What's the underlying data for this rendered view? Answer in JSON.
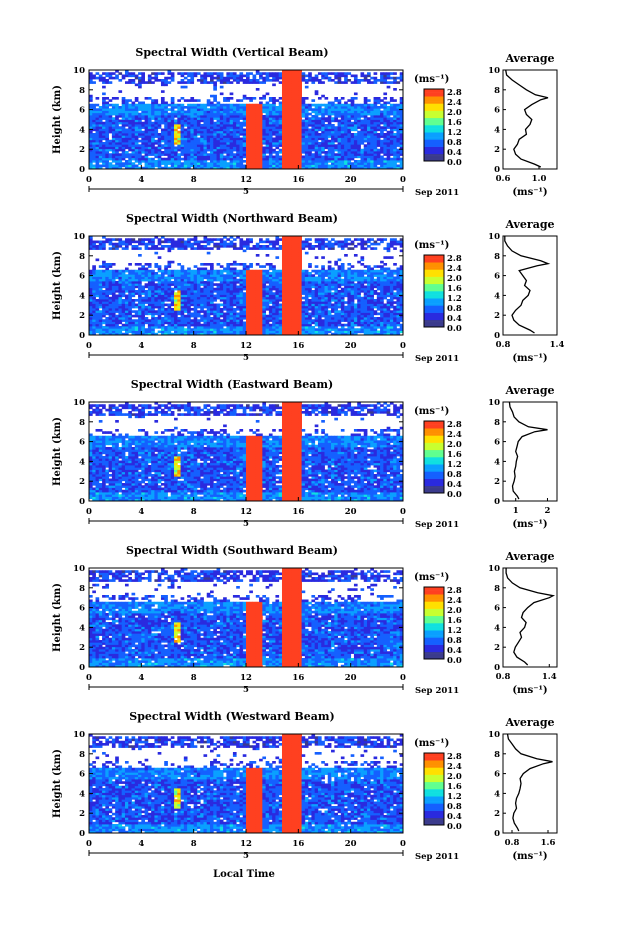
{
  "colorbar": {
    "unit": "(ms⁻¹)",
    "tick_labels": [
      "2.8",
      "2.4",
      "2.0",
      "1.6",
      "1.2",
      "0.8",
      "0.4",
      "0.0"
    ],
    "range": [
      0.0,
      2.8
    ],
    "colors": [
      "#3b3b8c",
      "#2a2adf",
      "#1560ff",
      "#0aa0ff",
      "#10e0e0",
      "#60ff90",
      "#c8ff30",
      "#ffe000",
      "#ff9000",
      "#ff4020",
      "#e01010"
    ]
  },
  "x_axis": {
    "label": "Local Time",
    "tick_labels": [
      "0",
      "4",
      "8",
      "12",
      "16",
      "20",
      "0"
    ],
    "day_label": "5",
    "date_label": "Sep 2011"
  },
  "y_axis": {
    "label": "Height (km)",
    "tick_labels": [
      "0",
      "2",
      "4",
      "6",
      "8",
      "10"
    ]
  },
  "profile_panel": {
    "title": "Average",
    "xlabel": "(ms⁻¹)"
  },
  "chart_data": [
    {
      "type": "heatmap",
      "title": "Spectral Width (Vertical Beam)",
      "xlabel": "",
      "ylabel": "Height (km)",
      "xlim": [
        0,
        24
      ],
      "ylim": [
        0,
        10
      ],
      "profile": {
        "x_ticks": [
          "0.6",
          "1.0"
        ],
        "xlim": [
          0.6,
          1.2
        ],
        "heights": [
          0.2,
          0.5,
          1.0,
          1.5,
          2.0,
          2.5,
          3.0,
          3.5,
          4.0,
          4.5,
          5.0,
          5.5,
          6.0,
          6.5,
          7.0,
          7.2,
          7.5,
          8.0,
          8.5,
          9.0,
          9.5,
          10.0
        ],
        "values": [
          1.02,
          0.95,
          0.8,
          0.74,
          0.72,
          0.76,
          0.78,
          0.86,
          0.85,
          0.9,
          0.92,
          0.86,
          0.84,
          0.92,
          1.02,
          1.1,
          0.96,
          0.86,
          0.78,
          0.7,
          0.64,
          0.63
        ]
      }
    },
    {
      "type": "heatmap",
      "title": "Spectral Width (Northward Beam)",
      "xlabel": "",
      "ylabel": "Height (km)",
      "xlim": [
        0,
        24
      ],
      "ylim": [
        0,
        10
      ],
      "profile": {
        "x_ticks": [
          "0.8",
          "1.4"
        ],
        "xlim": [
          0.8,
          1.4
        ],
        "heights": [
          0.2,
          0.5,
          1.0,
          1.5,
          2.0,
          2.5,
          3.0,
          3.5,
          4.0,
          4.5,
          5.0,
          5.5,
          6.0,
          6.5,
          7.0,
          7.2,
          7.5,
          8.0,
          8.5,
          9.0,
          9.5,
          10.0
        ],
        "values": [
          1.15,
          1.1,
          0.98,
          0.92,
          0.9,
          0.94,
          1.0,
          1.02,
          1.08,
          1.1,
          1.04,
          1.06,
          1.02,
          0.98,
          1.18,
          1.3,
          1.22,
          1.0,
          0.9,
          0.85,
          0.82,
          0.82
        ]
      }
    },
    {
      "type": "heatmap",
      "title": "Spectral Width (Eastward Beam)",
      "xlabel": "",
      "ylabel": "Height (km)",
      "xlim": [
        0,
        24
      ],
      "ylim": [
        0,
        10
      ],
      "profile": {
        "x_ticks": [
          "1",
          "2"
        ],
        "xlim": [
          0.6,
          2.3
        ],
        "heights": [
          0.2,
          0.5,
          1.0,
          1.5,
          2.0,
          2.5,
          3.0,
          3.5,
          4.0,
          4.5,
          5.0,
          5.5,
          6.0,
          6.5,
          7.0,
          7.2,
          7.5,
          8.0,
          8.5,
          9.0,
          9.5,
          10.0
        ],
        "values": [
          1.1,
          1.05,
          0.92,
          0.9,
          0.95,
          0.98,
          0.96,
          1.0,
          1.02,
          1.06,
          1.0,
          1.04,
          1.08,
          1.2,
          1.6,
          2.0,
          1.4,
          1.1,
          0.95,
          0.9,
          0.82,
          0.8
        ]
      }
    },
    {
      "type": "heatmap",
      "title": "Spectral Width (Southward Beam)",
      "xlabel": "",
      "ylabel": "Height (km)",
      "xlim": [
        0,
        24
      ],
      "ylim": [
        0,
        10
      ],
      "profile": {
        "x_ticks": [
          "0.8",
          "1.4"
        ],
        "xlim": [
          0.8,
          1.5
        ],
        "heights": [
          0.2,
          0.5,
          1.0,
          1.5,
          2.0,
          2.5,
          3.0,
          3.5,
          4.0,
          4.5,
          5.0,
          5.5,
          6.0,
          6.5,
          7.0,
          7.2,
          7.5,
          8.0,
          8.5,
          9.0,
          9.5,
          10.0
        ],
        "values": [
          1.12,
          1.08,
          0.98,
          0.94,
          0.96,
          1.0,
          1.04,
          1.02,
          1.08,
          1.1,
          1.04,
          1.06,
          1.12,
          1.2,
          1.4,
          1.45,
          1.25,
          1.02,
          0.92,
          0.86,
          0.84,
          0.84
        ]
      }
    },
    {
      "type": "heatmap",
      "title": "Spectral Width (Westward Beam)",
      "xlabel": "Local Time",
      "ylabel": "Height (km)",
      "xlim": [
        0,
        24
      ],
      "ylim": [
        0,
        10
      ],
      "profile": {
        "x_ticks": [
          "0.8",
          "1.6"
        ],
        "xlim": [
          0.6,
          1.8
        ],
        "heights": [
          0.2,
          0.5,
          1.0,
          1.5,
          2.0,
          2.5,
          3.0,
          3.5,
          4.0,
          4.5,
          5.0,
          5.5,
          6.0,
          6.5,
          7.0,
          7.2,
          7.5,
          8.0,
          8.5,
          9.0,
          9.5,
          10.0
        ],
        "values": [
          0.95,
          0.92,
          0.85,
          0.82,
          0.84,
          0.9,
          0.88,
          0.9,
          0.95,
          0.98,
          1.0,
          0.98,
          1.05,
          1.2,
          1.5,
          1.7,
          1.35,
          1.0,
          0.88,
          0.8,
          0.72,
          0.7
        ]
      }
    }
  ]
}
